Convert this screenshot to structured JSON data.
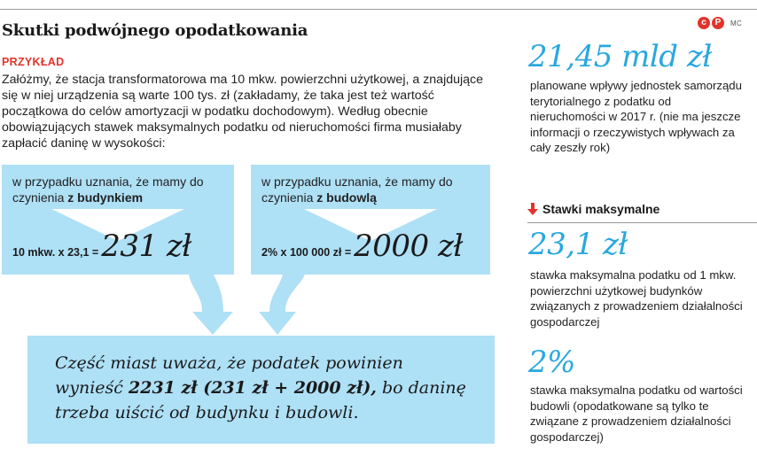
{
  "header": {
    "title": "Skutki podwójnego opodatkowania",
    "logo_c1": "c",
    "logo_c2": "P",
    "logo_mc": "MC"
  },
  "example": {
    "label": "PRZYKŁAD",
    "text": "Załóżmy, że stacja transformatorowa ma 10 mkw. powierzchni użytkowej, a znajdujące się w niej urządzenia są warte 100 tys. zł (zakładamy, że taka jest też wartość początkowa do celów amortyzacji w podatku dochodowym). Według obecnie obowiązujących stawek maksymalnych podatku od nieruchomości firma musiałaby zapłacić daninę w wysokości:"
  },
  "case_building": {
    "text": "w przypadku uznania, że mamy do czynienia",
    "emphasis": "z budynkiem",
    "calc": "10 mkw. x 23,1 =",
    "value": "231 zł"
  },
  "case_structure": {
    "text": "w przypadku uznania, że mamy do czynienia",
    "emphasis": "z budowlą",
    "calc": "2% x 100 000 zł =",
    "value": "2000 zł"
  },
  "result": {
    "part1": "Część miast uważa, że podatek powinien wynieść",
    "bold": "2231 zł (231 zł + 2000 zł),",
    "part2": "bo daninę trzeba uiścić od budynku i budowli."
  },
  "revenue": {
    "value": "21,45 mld zł",
    "desc": "planowane wpływy jednostek samorządu terytorialnego z podatku od nieruchomości w 2017 r. (nie ma jeszcze informacji o rzeczywistych wpływach za cały zeszły rok)"
  },
  "rates": {
    "title": "Stawki maksymalne",
    "items": [
      {
        "value": "23,1 zł",
        "desc": "stawka maksymalna podatku od 1 mkw. powierzchni użytkowej budynków związanych z prowadzeniem działalności gospodarczej"
      },
      {
        "value": "2%",
        "desc": "stawka maksymalna podatku od wartości budowli (opodatkowane są tylko te związane z prowadzeniem działalności gospodarczej)"
      }
    ]
  },
  "colors": {
    "accent_red": "#e2342b",
    "accent_blue": "#29a8df",
    "box_blue": "#aee0f6"
  }
}
